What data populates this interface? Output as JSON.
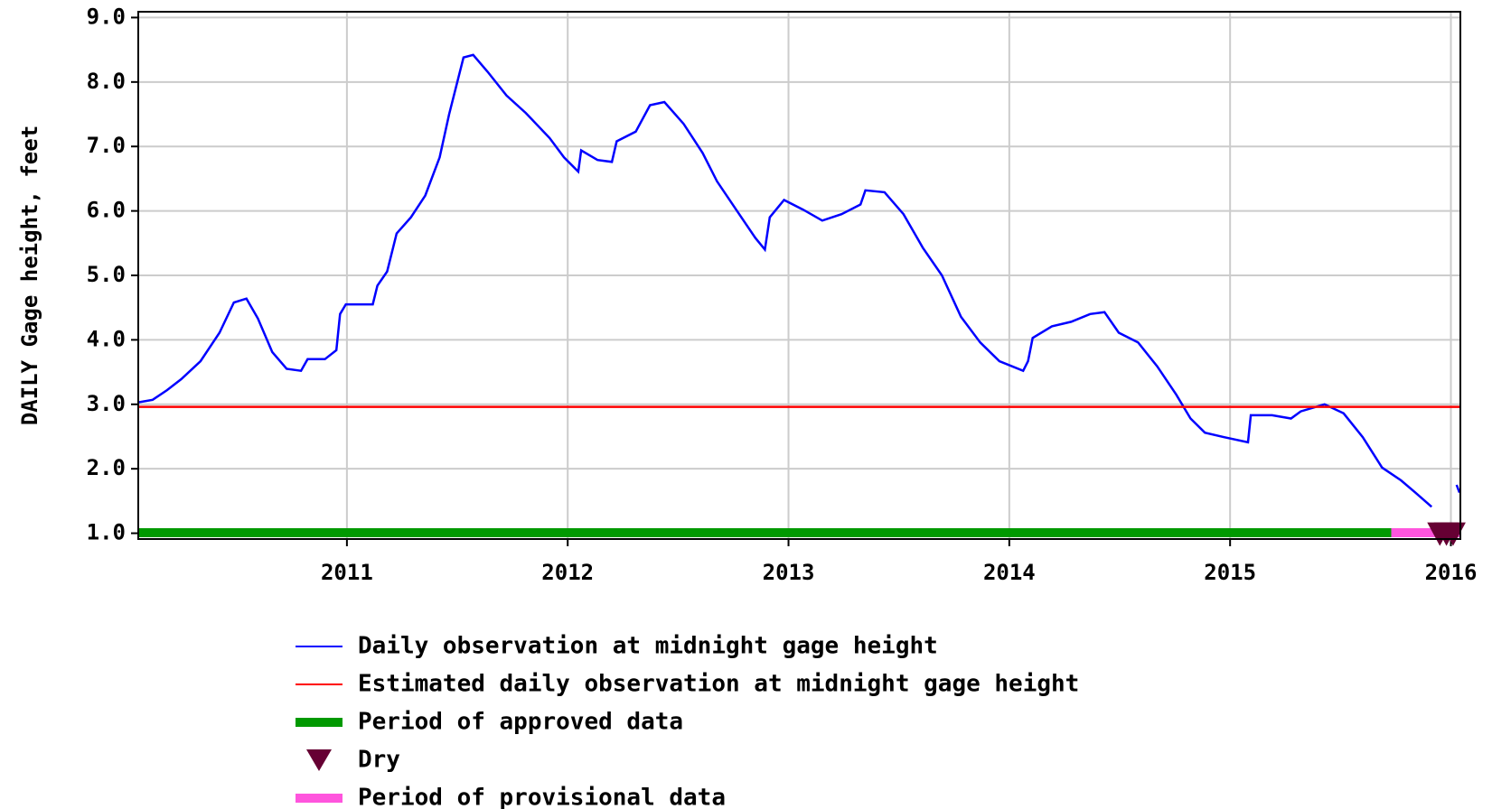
{
  "chart_data": {
    "type": "line",
    "y_label": "DAILY Gage height, feet",
    "xlim": [
      2010.055,
      2016.043
    ],
    "xticks": [
      2011,
      2012,
      2013,
      2014,
      2015,
      2016
    ],
    "ylim": [
      0.91,
      9.09
    ],
    "yticks": [
      {
        "value": 1,
        "label": "1.0"
      },
      {
        "value": 2,
        "label": "2.0"
      },
      {
        "value": 3,
        "label": "3.0"
      },
      {
        "value": 4,
        "label": "4.0"
      },
      {
        "value": 5,
        "label": "5.0"
      },
      {
        "value": 6,
        "label": "6.0"
      },
      {
        "value": 7,
        "label": "7.0"
      },
      {
        "value": 8,
        "label": "8.0"
      },
      {
        "value": 9,
        "label": "9.0"
      }
    ],
    "grid": true,
    "series": [
      {
        "name": "Daily observation at midnight gage height",
        "color": "#0000ff",
        "x": [
          2010.055,
          2010.12,
          2010.185,
          2010.25,
          2010.337,
          2010.423,
          2010.488,
          2010.545,
          2010.597,
          2010.662,
          2010.727,
          2010.792,
          2010.822,
          2010.9,
          2010.952,
          2010.969,
          2010.995,
          2011.117,
          2011.138,
          2011.182,
          2011.225,
          2011.29,
          2011.355,
          2011.42,
          2011.463,
          2011.528,
          2011.572,
          2011.637,
          2011.723,
          2011.81,
          2011.918,
          2011.983,
          2012.048,
          2012.061,
          2012.135,
          2012.2,
          2012.222,
          2012.308,
          2012.373,
          2012.438,
          2012.525,
          2012.611,
          2012.676,
          2012.763,
          2012.85,
          2012.893,
          2012.915,
          2012.98,
          2013.066,
          2013.153,
          2013.24,
          2013.326,
          2013.348,
          2013.435,
          2013.521,
          2013.608,
          2013.695,
          2013.781,
          2013.868,
          2013.955,
          2014.063,
          2014.085,
          2014.106,
          2014.193,
          2014.28,
          2014.366,
          2014.431,
          2014.496,
          2014.583,
          2014.67,
          2014.756,
          2014.821,
          2014.886,
          2014.973,
          2015.081,
          2015.094,
          2015.19,
          2015.276,
          2015.32,
          2015.428,
          2015.514,
          2015.601,
          2015.688,
          2015.774,
          2015.839,
          2015.913,
          2015.97,
          2016.026,
          2016.039
        ],
        "values": [
          3.03,
          3.07,
          3.22,
          3.39,
          3.67,
          4.11,
          4.58,
          4.64,
          4.33,
          3.81,
          3.55,
          3.52,
          3.7,
          3.7,
          3.84,
          4.4,
          4.55,
          4.55,
          4.84,
          5.06,
          5.65,
          5.9,
          6.24,
          6.83,
          7.5,
          8.38,
          8.42,
          8.16,
          7.79,
          7.52,
          7.13,
          6.83,
          6.61,
          6.94,
          6.79,
          6.76,
          7.08,
          7.23,
          7.64,
          7.69,
          7.35,
          6.9,
          6.46,
          6.02,
          5.58,
          5.4,
          5.9,
          6.17,
          6.02,
          5.85,
          5.95,
          6.1,
          6.32,
          6.29,
          5.95,
          5.43,
          5.0,
          4.36,
          3.96,
          3.67,
          3.52,
          3.67,
          4.03,
          4.21,
          4.28,
          4.4,
          4.43,
          4.11,
          3.96,
          3.59,
          3.15,
          2.78,
          2.56,
          2.49,
          2.41,
          2.83,
          2.83,
          2.78,
          2.89,
          3.0,
          2.86,
          2.49,
          2.02,
          1.82,
          1.63,
          1.41,
          null,
          1.75,
          1.63
        ]
      },
      {
        "name": "Estimated daily observation at midnight gage height",
        "color": "#ff0000",
        "x": [
          2010.055,
          2016.043
        ],
        "values": [
          2.96,
          2.96
        ]
      }
    ],
    "periods": [
      {
        "name": "Period of approved data",
        "color": "#009900",
        "start": 2010.055,
        "end": 2015.73
      },
      {
        "name": "Period of provisional data",
        "color": "#ff55dd",
        "start": 2015.73,
        "end": 2016.043
      }
    ],
    "dry": {
      "name": "Dry",
      "color": "#660033",
      "x": [
        2015.95,
        2015.98,
        2016.01
      ],
      "values": [
        1,
        1,
        1
      ]
    }
  }
}
